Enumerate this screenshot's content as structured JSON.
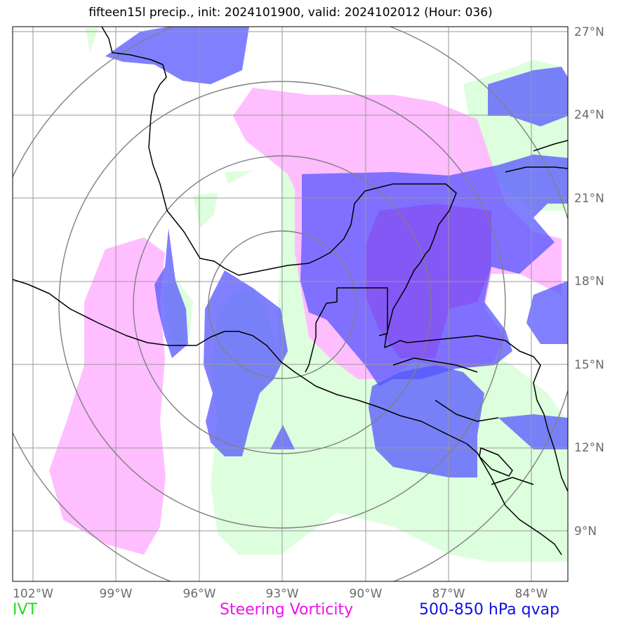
{
  "title": "fifteen15l precip., init: 2024101900, valid: 2024102012 (Hour: 036)",
  "map": {
    "lon_labels": [
      "102°W",
      "99°W",
      "96°W",
      "93°W",
      "90°W",
      "87°W",
      "84°W"
    ],
    "lat_labels": [
      "27°N",
      "24°N",
      "21°N",
      "18°N",
      "15°N",
      "12°N",
      "9°N"
    ],
    "lon_range": [
      -102.7,
      -82.8
    ],
    "lat_range": [
      7.3,
      27.2
    ],
    "range_ring_center": [
      -93.0,
      16.2
    ],
    "layers": [
      {
        "label": "IVT",
        "color": "#22dd22",
        "fill": "#ddffdd"
      },
      {
        "label": "Steering Vorticity",
        "color": "#ee11ee",
        "fill": "#ffbbff"
      },
      {
        "label": "500-850 hPa qvap",
        "color": "#1111dd",
        "fill": "#5555ff"
      }
    ]
  }
}
